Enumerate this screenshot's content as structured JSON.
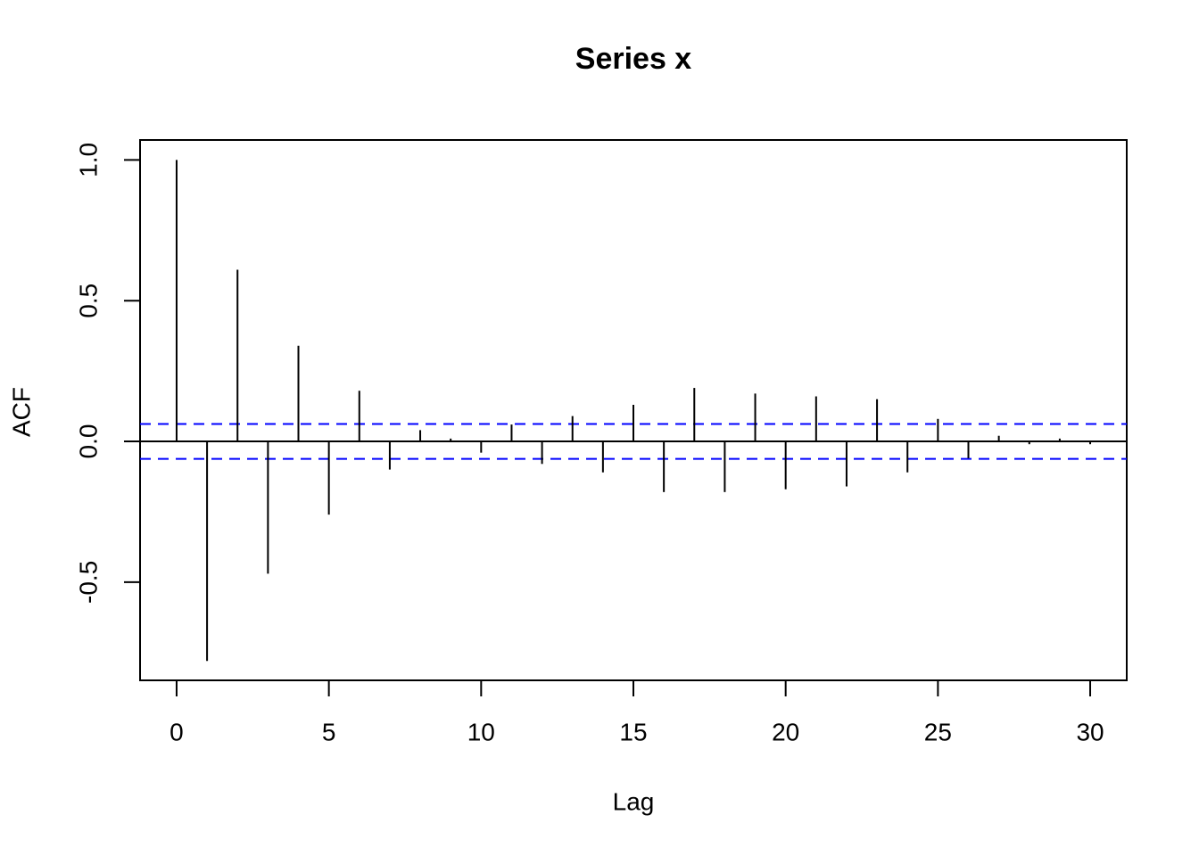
{
  "chart_data": {
    "type": "acf",
    "title": "Series  x",
    "x_label": "Lag",
    "y_label": "ACF",
    "x": [
      0,
      1,
      2,
      3,
      4,
      5,
      6,
      7,
      8,
      9,
      10,
      11,
      12,
      13,
      14,
      15,
      16,
      17,
      18,
      19,
      20,
      21,
      22,
      23,
      24,
      25,
      26,
      27,
      28,
      29,
      30
    ],
    "values": [
      1.0,
      -0.78,
      0.61,
      -0.47,
      0.34,
      -0.26,
      0.18,
      -0.1,
      0.04,
      0.01,
      -0.04,
      0.06,
      -0.08,
      0.09,
      -0.11,
      0.13,
      -0.18,
      0.19,
      -0.18,
      0.17,
      -0.17,
      0.16,
      -0.16,
      0.15,
      -0.11,
      0.08,
      -0.06,
      0.02,
      -0.01,
      0.01,
      -0.01
    ],
    "color": "#000000",
    "ci_upper": 0.062,
    "ci_lower": -0.062,
    "ci_color": "#0000ff",
    "xlim": [
      -1.2,
      31.2
    ],
    "ylim": [
      -0.849,
      1.071
    ],
    "xticks": [
      0,
      5,
      10,
      15,
      20,
      25,
      30
    ],
    "yticks": [
      -0.5,
      {
        "value": 0,
        "label": "0.0"
      },
      0.5,
      {
        "value": 1,
        "label": "1.0"
      }
    ]
  }
}
